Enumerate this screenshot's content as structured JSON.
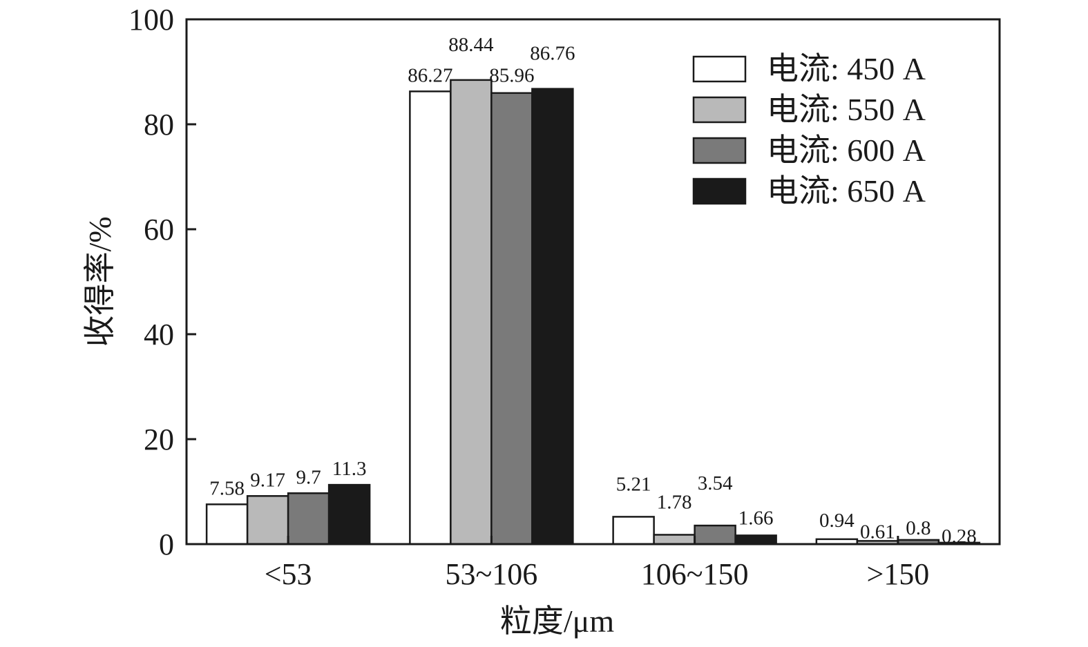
{
  "chart_data": {
    "type": "bar",
    "title": "",
    "xlabel": "粒度/μm",
    "ylabel": "收得率/%",
    "ylim": [
      0,
      100
    ],
    "yticks": [
      0,
      20,
      40,
      60,
      80,
      100
    ],
    "categories": [
      "<53",
      "53~106",
      "106~150",
      ">150"
    ],
    "legend_position": "top-right",
    "grid": false,
    "series": [
      {
        "name": "电流: 450 A",
        "color": "#ffffff",
        "values": [
          7.58,
          86.27,
          5.21,
          0.94
        ]
      },
      {
        "name": "电流: 550 A",
        "color": "#b9b9b9",
        "values": [
          9.17,
          88.44,
          1.78,
          0.61
        ]
      },
      {
        "name": "电流: 600 A",
        "color": "#7a7a7a",
        "values": [
          9.7,
          85.96,
          3.54,
          0.8
        ]
      },
      {
        "name": "电流: 650 A",
        "color": "#1a1a1a",
        "values": [
          11.3,
          86.76,
          1.66,
          0.28
        ]
      }
    ]
  }
}
